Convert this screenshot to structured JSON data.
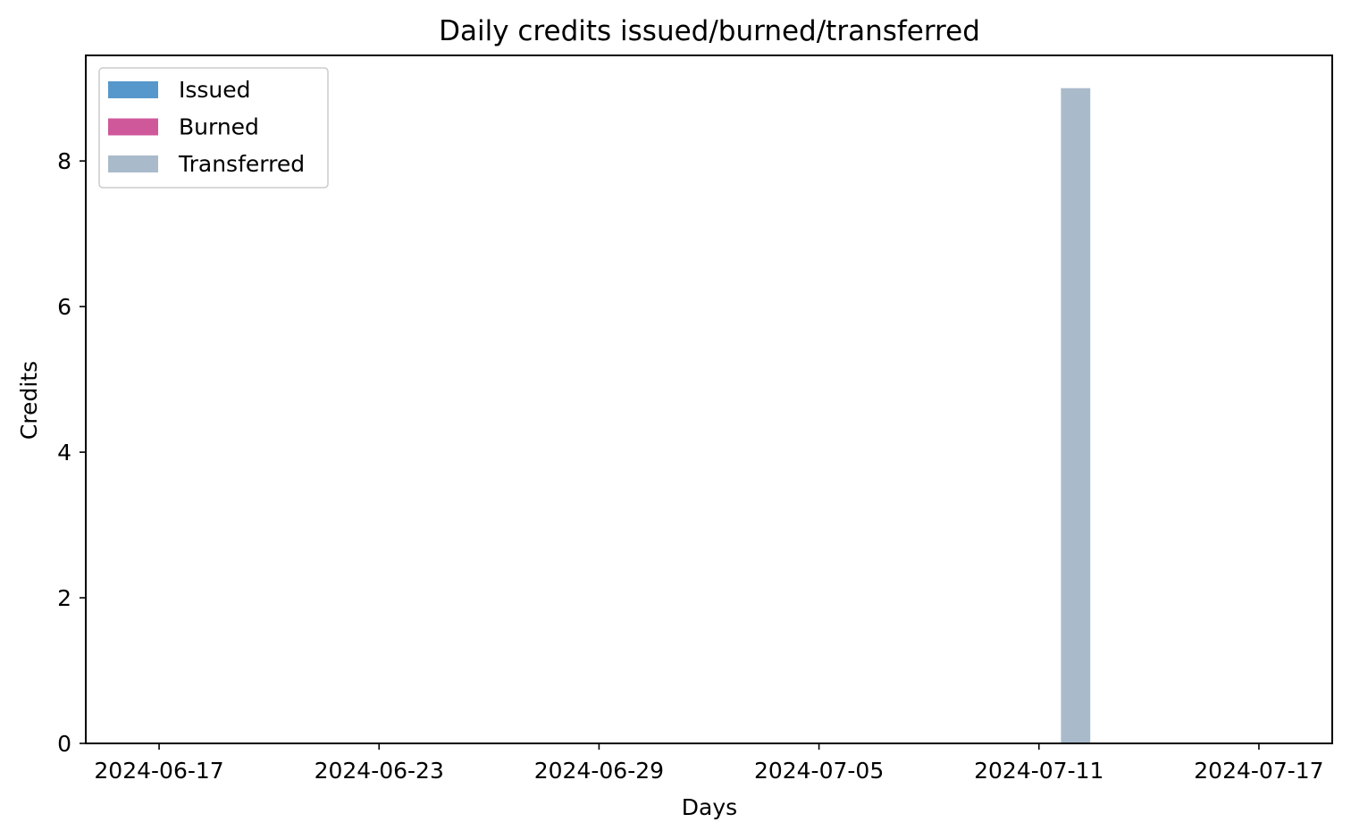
{
  "chart_data": {
    "type": "bar",
    "title": "Daily credits issued/burned/transferred",
    "xlabel": "Days",
    "ylabel": "Credits",
    "x_range": [
      "2024-06-15",
      "2024-07-19"
    ],
    "x_ticks": [
      "2024-06-17",
      "2024-06-23",
      "2024-06-29",
      "2024-07-05",
      "2024-07-11",
      "2024-07-17"
    ],
    "ylim": [
      0,
      9.45
    ],
    "y_ticks": [
      0,
      2,
      4,
      6,
      8
    ],
    "grid": false,
    "legend_position": "top-left",
    "series": [
      {
        "name": "Issued",
        "color": "#5698cb",
        "points": []
      },
      {
        "name": "Burned",
        "color": "#cf589b",
        "points": []
      },
      {
        "name": "Transferred",
        "color": "#a9bbcb",
        "points": [
          {
            "x": "2024-07-12",
            "y": 9
          }
        ]
      }
    ]
  }
}
